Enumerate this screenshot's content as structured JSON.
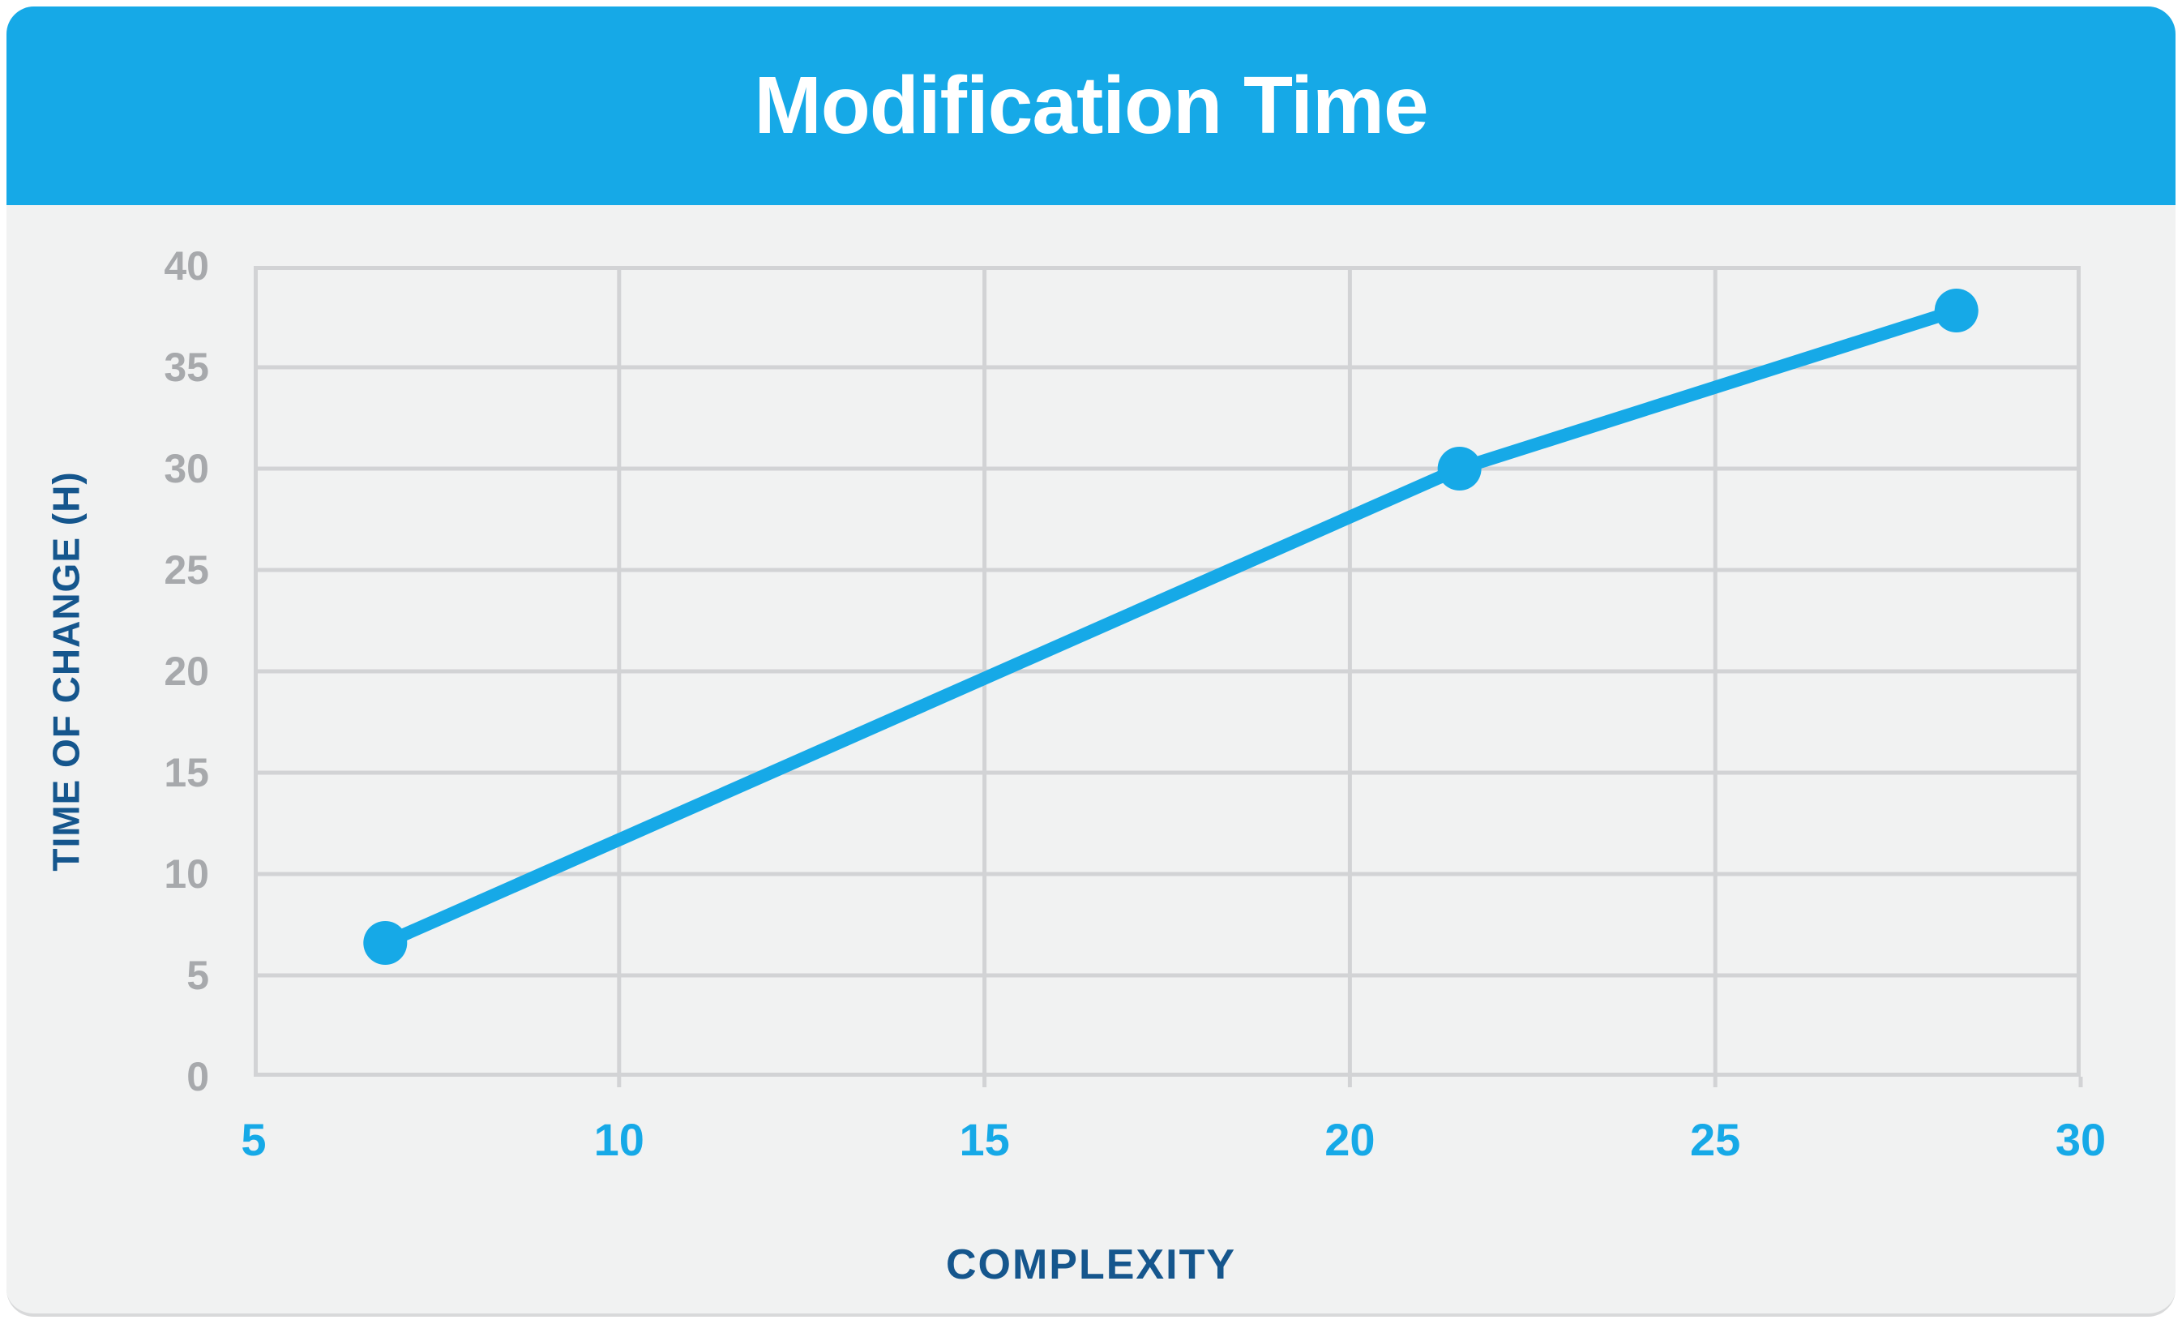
{
  "header": {
    "title": "Modification Time"
  },
  "colors": {
    "accent_blue": "#16a9e7",
    "dark_navy": "#15568d",
    "tick_gray": "#a7a9ac",
    "grid_gray": "#d2d3d5",
    "card_bg": "#f1f2f2",
    "page_bg": "#ffffff",
    "title_white": "#ffffff",
    "card_edge": "#d8d9da"
  },
  "chart_data": {
    "type": "line",
    "title": "Modification Time",
    "xlabel": "COMPLEXITY",
    "ylabel": "TIME OF CHANGE (H)",
    "xlim": [
      5,
      30
    ],
    "ylim": [
      0,
      40
    ],
    "x_ticks": [
      5,
      10,
      15,
      20,
      25,
      30
    ],
    "y_ticks": [
      0,
      5,
      10,
      15,
      20,
      25,
      30,
      35,
      40
    ],
    "grid": true,
    "legend": false,
    "marker_radius": 27,
    "line_width": 16,
    "series": [
      {
        "name": "Modification Time",
        "points": [
          [
            6.8,
            6.6
          ],
          [
            21.5,
            30
          ],
          [
            28.3,
            37.8
          ]
        ]
      }
    ]
  }
}
